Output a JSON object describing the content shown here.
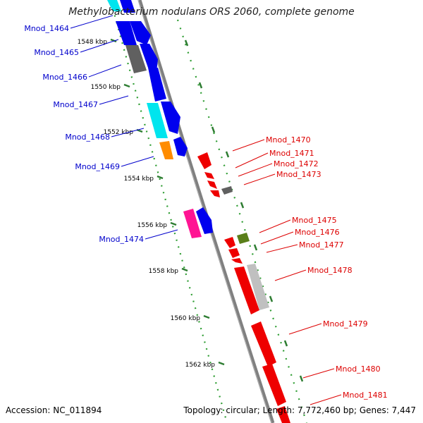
{
  "title": "Methylobacterium nodulans ORS 2060, complete genome",
  "accession_text": "Accession: NC_011894",
  "topology_text": "Topology: circular; Length: 7,772,460 bp; Genes: 7,447",
  "colors": {
    "backbone": "#808080",
    "tick_major": "#2e7d32",
    "tick_minor": "#2e9d32",
    "left_label": "#0000cc",
    "right_label": "#dd0000",
    "kbp_label": "#000000"
  },
  "kbp_ticks": [
    "1548 kbp",
    "1550 kbp",
    "1552 kbp",
    "1554 kbp",
    "1556 kbp",
    "1558 kbp",
    "1560 kbp",
    "1562 kbp"
  ],
  "left_labels": [
    "Mnod_1464",
    "Mnod_1465",
    "Mnod_1466",
    "Mnod_1467",
    "Mnod_1468",
    "Mnod_1469",
    "Mnod_1474"
  ],
  "right_labels": [
    "Mnod_1470",
    "Mnod_1471",
    "Mnod_1472",
    "Mnod_1473",
    "Mnod_1475",
    "Mnod_1476",
    "Mnod_1477",
    "Mnod_1478",
    "Mnod_1479",
    "Mnod_1480",
    "Mnod_1481"
  ],
  "genes": [
    {
      "id": "Mnod_1464",
      "strand": "forward",
      "color": "#00e5ee"
    },
    {
      "id": "Mnod_1464b",
      "strand": "forward",
      "color": "#0000ee"
    },
    {
      "id": "Mnod_1465",
      "strand": "forward",
      "color": "#0000ee"
    },
    {
      "id": "Mnod_1465b",
      "strand": "forward",
      "color": "#0000ee"
    },
    {
      "id": "Mnod_1466",
      "strand": "forward",
      "color": "#606060"
    },
    {
      "id": "Mnod_1466b",
      "strand": "forward",
      "color": "#0000ee"
    },
    {
      "id": "Mnod_1467",
      "strand": "forward",
      "color": "#0000ee"
    },
    {
      "id": "Mnod_1468",
      "strand": "forward",
      "color": "#00e5ee"
    },
    {
      "id": "Mnod_1468b",
      "strand": "forward",
      "color": "#0000ee"
    },
    {
      "id": "Mnod_1469",
      "strand": "forward",
      "color": "#ff8c00"
    },
    {
      "id": "Mnod_1469b",
      "strand": "forward",
      "color": "#0000ee"
    },
    {
      "id": "Mnod_1474",
      "strand": "forward",
      "color": "#ff1493"
    },
    {
      "id": "Mnod_1474b",
      "strand": "forward",
      "color": "#0000ee"
    },
    {
      "id": "Mnod_1470",
      "strand": "reverse",
      "color": "#ee0000"
    },
    {
      "id": "Mnod_1471",
      "strand": "reverse",
      "color": "#ee0000"
    },
    {
      "id": "Mnod_1472",
      "strand": "reverse",
      "color": "#ee0000"
    },
    {
      "id": "Mnod_1472b",
      "strand": "reverse",
      "color": "#ee0000"
    },
    {
      "id": "Mnod_1473",
      "strand": "reverse",
      "color": "#606060"
    },
    {
      "id": "Mnod_1475",
      "strand": "reverse",
      "color": "#ee0000"
    },
    {
      "id": "Mnod_1476",
      "strand": "reverse",
      "color": "#5a7f1a"
    },
    {
      "id": "Mnod_1477",
      "strand": "reverse",
      "color": "#ee0000"
    },
    {
      "id": "Mnod_1477b",
      "strand": "reverse",
      "color": "#ee0000"
    },
    {
      "id": "Mnod_1478",
      "strand": "reverse",
      "color": "#ee0000"
    },
    {
      "id": "Mnod_1478b",
      "strand": "reverse",
      "color": "#c0c0c0"
    },
    {
      "id": "Mnod_1479",
      "strand": "reverse",
      "color": "#ee0000"
    },
    {
      "id": "Mnod_1480",
      "strand": "reverse",
      "color": "#ee0000"
    },
    {
      "id": "Mnod_1481",
      "strand": "reverse",
      "color": "#ee0000"
    }
  ]
}
